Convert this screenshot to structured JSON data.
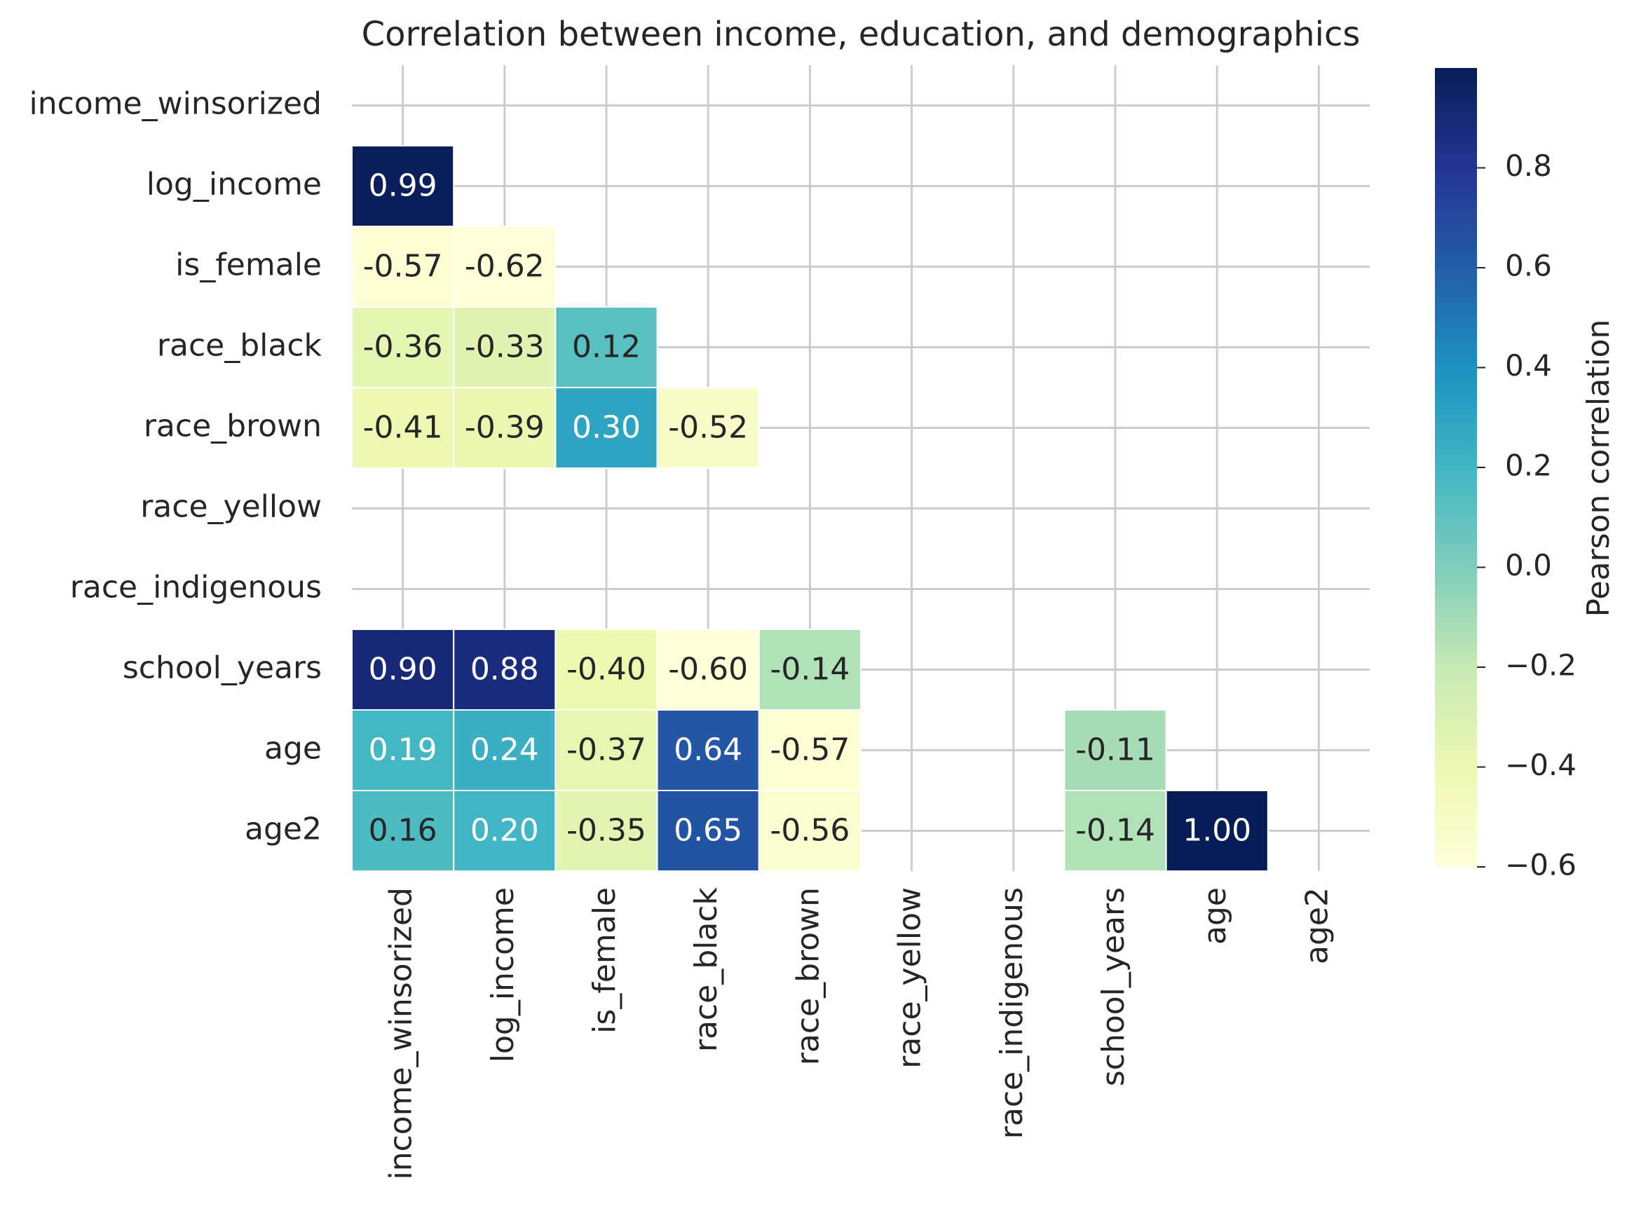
{
  "chart_data": {
    "type": "heatmap",
    "title": "Correlation between income, education, and demographics",
    "x_categories": [
      "income_winsorized",
      "log_income",
      "is_female",
      "race_black",
      "race_brown",
      "race_yellow",
      "race_indigenous",
      "school_years",
      "age",
      "age2"
    ],
    "y_categories": [
      "income_winsorized",
      "log_income",
      "is_female",
      "race_black",
      "race_brown",
      "race_yellow",
      "race_indigenous",
      "school_years",
      "age",
      "age2"
    ],
    "values": [
      [
        null,
        null,
        null,
        null,
        null,
        null,
        null,
        null,
        null,
        null
      ],
      [
        0.99,
        null,
        null,
        null,
        null,
        null,
        null,
        null,
        null,
        null
      ],
      [
        -0.57,
        -0.62,
        null,
        null,
        null,
        null,
        null,
        null,
        null,
        null
      ],
      [
        -0.36,
        -0.33,
        0.12,
        null,
        null,
        null,
        null,
        null,
        null,
        null
      ],
      [
        -0.41,
        -0.39,
        0.3,
        -0.52,
        null,
        null,
        null,
        null,
        null,
        null
      ],
      [
        null,
        null,
        null,
        null,
        null,
        null,
        null,
        null,
        null,
        null
      ],
      [
        null,
        null,
        null,
        null,
        null,
        null,
        null,
        null,
        null,
        null
      ],
      [
        0.9,
        0.88,
        -0.4,
        -0.6,
        -0.14,
        null,
        null,
        null,
        null,
        null
      ],
      [
        0.19,
        0.24,
        -0.37,
        0.64,
        -0.57,
        null,
        null,
        -0.11,
        null,
        null
      ],
      [
        0.16,
        0.2,
        -0.35,
        0.65,
        -0.56,
        null,
        null,
        -0.14,
        1.0,
        null
      ]
    ],
    "value_labels": [
      [
        null,
        null,
        null,
        null,
        null,
        null,
        null,
        null,
        null,
        null
      ],
      [
        "0.99",
        null,
        null,
        null,
        null,
        null,
        null,
        null,
        null,
        null
      ],
      [
        "-0.57",
        "-0.62",
        null,
        null,
        null,
        null,
        null,
        null,
        null,
        null
      ],
      [
        "-0.36",
        "-0.33",
        "0.12",
        null,
        null,
        null,
        null,
        null,
        null,
        null
      ],
      [
        "-0.41",
        "-0.39",
        "0.30",
        "-0.52",
        null,
        null,
        null,
        null,
        null,
        null
      ],
      [
        null,
        null,
        null,
        null,
        null,
        null,
        null,
        null,
        null,
        null
      ],
      [
        null,
        null,
        null,
        null,
        null,
        null,
        null,
        null,
        null,
        null
      ],
      [
        "0.90",
        "0.88",
        "-0.40",
        "-0.60",
        "-0.14",
        null,
        null,
        null,
        null,
        null
      ],
      [
        "0.19",
        "0.24",
        "-0.37",
        "0.64",
        "-0.57",
        null,
        null,
        "-0.11",
        null,
        null
      ],
      [
        "0.16",
        "0.20",
        "-0.35",
        "0.65",
        "-0.56",
        null,
        null,
        "-0.14",
        "1.00",
        null
      ]
    ],
    "colormap": [
      "#ffffd9",
      "#edf8b1",
      "#c7e9b4",
      "#7fcdbb",
      "#41b6c4",
      "#1d91c0",
      "#225ea8",
      "#253494",
      "#081d58"
    ],
    "colorbar_label": "Pearson correlation",
    "clim": [
      -0.6,
      1.0
    ],
    "cticks": [
      {
        "value": -0.6,
        "label": "−0.6"
      },
      {
        "value": -0.4,
        "label": "−0.4"
      },
      {
        "value": -0.2,
        "label": "−0.2"
      },
      {
        "value": 0.0,
        "label": "0.0"
      },
      {
        "value": 0.2,
        "label": "0.2"
      },
      {
        "value": 0.4,
        "label": "0.4"
      },
      {
        "value": 0.6,
        "label": "0.6"
      },
      {
        "value": 0.8,
        "label": "0.8"
      }
    ],
    "grid": true
  }
}
